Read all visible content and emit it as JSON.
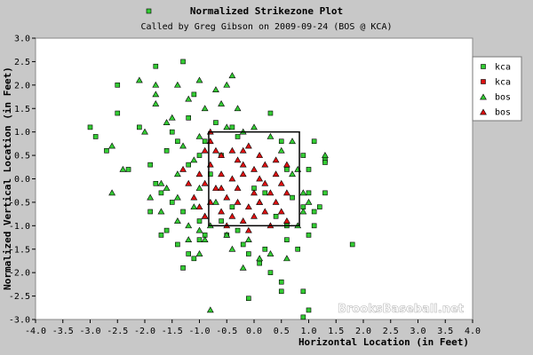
{
  "chart_data": {
    "type": "scatter",
    "title": "Normalized Strikezone Plot",
    "subtitle": "Called by Greg Gibson on 2009-09-24 (BOS @ KCA)",
    "xlabel": "Horizontal Location (in Feet)",
    "ylabel": "Normalized Vertical Location (in Feet)",
    "xlim": [
      -4.0,
      4.0
    ],
    "ylim": [
      -3.0,
      3.0
    ],
    "x_ticks": [
      "-4.0",
      "-3.5",
      "-3.0",
      "-2.5",
      "-2.0",
      "-1.5",
      "-1.0",
      "-0.5",
      "0.0",
      "0.5",
      "1.0",
      "1.5",
      "2.0",
      "2.5",
      "3.0",
      "3.5",
      "4.0"
    ],
    "y_ticks": [
      "3.0",
      "2.5",
      "2.0",
      "1.5",
      "1.0",
      "0.5",
      "0.0",
      "-0.5",
      "-1.0",
      "-1.5",
      "-2.0",
      "-2.5",
      "-3.0"
    ],
    "strike_zone": {
      "x": [
        -0.83,
        0.83
      ],
      "y": [
        -1.0,
        1.0
      ]
    },
    "legend_position": "top-right",
    "watermark": "BrooksBaseball.net",
    "colors": {
      "green": "#33cc33",
      "red": "#dd1111",
      "plot_bg": "#ffffff",
      "page_bg": "#c8c8c8"
    },
    "series": [
      {
        "name": "kca",
        "marker": "square",
        "color": "#33cc33",
        "points": [
          [
            -2.5,
            2.0
          ],
          [
            -2.5,
            1.4
          ],
          [
            -1.8,
            2.4
          ],
          [
            -1.3,
            2.5
          ],
          [
            -1.2,
            1.3
          ],
          [
            -1.5,
            1.0
          ],
          [
            -2.1,
            1.1
          ],
          [
            -3.0,
            1.1
          ],
          [
            -2.9,
            0.9
          ],
          [
            -2.7,
            0.6
          ],
          [
            -2.3,
            0.2
          ],
          [
            -1.9,
            0.3
          ],
          [
            -1.6,
            0.6
          ],
          [
            -1.4,
            0.8
          ],
          [
            -1.2,
            0.3
          ],
          [
            -1.8,
            -0.1
          ],
          [
            -1.7,
            -0.3
          ],
          [
            -1.5,
            -0.5
          ],
          [
            -1.3,
            -0.7
          ],
          [
            -1.0,
            -0.9
          ],
          [
            -1.6,
            -1.1
          ],
          [
            -1.4,
            -1.4
          ],
          [
            -1.2,
            -1.6
          ],
          [
            -1.0,
            -1.3
          ],
          [
            -1.9,
            -0.7
          ],
          [
            -1.7,
            -1.2
          ],
          [
            -1.3,
            -1.9
          ],
          [
            -1.1,
            -1.7
          ],
          [
            -0.9,
            -1.2
          ],
          [
            -0.6,
            -0.9
          ],
          [
            -0.3,
            -1.1
          ],
          [
            -0.2,
            -1.4
          ],
          [
            -0.1,
            -1.6
          ],
          [
            0.1,
            -1.8
          ],
          [
            0.2,
            -1.5
          ],
          [
            0.3,
            -2.0
          ],
          [
            0.5,
            -2.2
          ],
          [
            0.6,
            -1.3
          ],
          [
            0.8,
            -1.5
          ],
          [
            1.0,
            -1.2
          ],
          [
            1.1,
            -1.0
          ],
          [
            1.2,
            -0.6
          ],
          [
            1.3,
            -0.3
          ],
          [
            1.0,
            0.2
          ],
          [
            0.9,
            0.5
          ],
          [
            1.1,
            0.8
          ],
          [
            1.3,
            0.4
          ],
          [
            1.0,
            -0.3
          ],
          [
            0.9,
            -0.6
          ],
          [
            0.7,
            -0.4
          ],
          [
            0.6,
            0.2
          ],
          [
            0.5,
            0.8
          ],
          [
            0.3,
            1.4
          ],
          [
            -0.3,
            0.9
          ],
          [
            -0.4,
            1.1
          ],
          [
            -0.6,
            0.5
          ],
          [
            -0.8,
            0.1
          ],
          [
            -1.0,
            0.5
          ],
          [
            -0.9,
            0.8
          ],
          [
            -0.7,
            1.2
          ],
          [
            -1.1,
            1.8
          ],
          [
            0.4,
            -0.8
          ],
          [
            0.2,
            -0.3
          ],
          [
            0.0,
            -0.2
          ],
          [
            -0.4,
            -0.6
          ],
          [
            -0.5,
            -1.2
          ],
          [
            0.6,
            -1.0
          ],
          [
            1.8,
            -1.4
          ],
          [
            0.9,
            -2.4
          ],
          [
            0.5,
            -2.4
          ],
          [
            1.0,
            -2.8
          ],
          [
            0.9,
            -2.95
          ],
          [
            -0.1,
            -2.55
          ],
          [
            1.3,
            0.35
          ],
          [
            1.1,
            -0.7
          ]
        ]
      },
      {
        "name": "kca",
        "marker": "square",
        "color": "#dd1111",
        "points": []
      },
      {
        "name": "bos",
        "marker": "triangle",
        "color": "#33cc33",
        "points": [
          [
            -2.1,
            2.1
          ],
          [
            -1.8,
            2.0
          ],
          [
            -1.8,
            1.8
          ],
          [
            -1.8,
            1.6
          ],
          [
            -1.4,
            2.0
          ],
          [
            -1.0,
            2.1
          ],
          [
            -0.7,
            1.9
          ],
          [
            -0.5,
            2.0
          ],
          [
            -0.4,
            2.2
          ],
          [
            -1.2,
            1.7
          ],
          [
            -0.9,
            1.5
          ],
          [
            -0.6,
            1.6
          ],
          [
            -0.3,
            1.5
          ],
          [
            -1.5,
            1.3
          ],
          [
            -1.6,
            1.2
          ],
          [
            -2.0,
            1.0
          ],
          [
            -2.6,
            0.7
          ],
          [
            -2.4,
            0.2
          ],
          [
            -2.6,
            -0.3
          ],
          [
            -1.9,
            -0.4
          ],
          [
            -1.7,
            -0.7
          ],
          [
            -1.4,
            -0.9
          ],
          [
            -1.2,
            -1.0
          ],
          [
            -1.0,
            -1.1
          ],
          [
            -0.9,
            -1.3
          ],
          [
            -1.2,
            -1.3
          ],
          [
            -1.0,
            -1.6
          ],
          [
            -1.6,
            -0.2
          ],
          [
            -1.4,
            -0.4
          ],
          [
            -1.1,
            -0.6
          ],
          [
            -0.9,
            -0.8
          ],
          [
            -0.8,
            -1.0
          ],
          [
            -0.5,
            -1.2
          ],
          [
            -0.4,
            -1.5
          ],
          [
            -0.1,
            -1.3
          ],
          [
            0.3,
            -1.6
          ],
          [
            0.6,
            -1.7
          ],
          [
            0.8,
            -1.0
          ],
          [
            0.9,
            -0.7
          ],
          [
            1.0,
            -0.5
          ],
          [
            0.8,
            0.2
          ],
          [
            0.9,
            -0.3
          ],
          [
            0.7,
            0.1
          ],
          [
            0.5,
            0.6
          ],
          [
            0.7,
            0.8
          ],
          [
            0.3,
            0.9
          ],
          [
            0.0,
            1.1
          ],
          [
            -0.2,
            1.0
          ],
          [
            -0.5,
            1.1
          ],
          [
            -1.0,
            0.9
          ],
          [
            -1.3,
            0.7
          ],
          [
            -1.1,
            0.4
          ],
          [
            -1.4,
            0.1
          ],
          [
            -1.7,
            -0.1
          ],
          [
            -0.7,
            -0.5
          ],
          [
            -1.0,
            -0.2
          ],
          [
            0.1,
            -0.5
          ],
          [
            1.3,
            0.5
          ],
          [
            -0.2,
            -1.9
          ],
          [
            -0.8,
            -2.8
          ],
          [
            0.1,
            -1.7
          ]
        ]
      },
      {
        "name": "bos",
        "marker": "triangle",
        "color": "#dd1111",
        "points": [
          [
            -0.8,
            0.8
          ],
          [
            -0.7,
            0.6
          ],
          [
            -0.6,
            0.5
          ],
          [
            -0.4,
            0.6
          ],
          [
            -0.2,
            0.6
          ],
          [
            -0.1,
            0.7
          ],
          [
            0.1,
            0.5
          ],
          [
            0.2,
            0.3
          ],
          [
            0.4,
            0.1
          ],
          [
            0.5,
            -0.1
          ],
          [
            0.6,
            -0.3
          ],
          [
            -0.8,
            0.3
          ],
          [
            -0.6,
            0.1
          ],
          [
            -0.4,
            0.0
          ],
          [
            -0.2,
            0.1
          ],
          [
            0.0,
            0.2
          ],
          [
            0.2,
            -0.1
          ],
          [
            0.3,
            -0.3
          ],
          [
            0.1,
            -0.5
          ],
          [
            -0.1,
            -0.6
          ],
          [
            -0.3,
            -0.5
          ],
          [
            -0.5,
            -0.4
          ],
          [
            -0.7,
            -0.2
          ],
          [
            -0.8,
            -0.5
          ],
          [
            -0.6,
            -0.7
          ],
          [
            -0.4,
            -0.8
          ],
          [
            -0.2,
            -0.9
          ],
          [
            0.0,
            -0.8
          ],
          [
            0.2,
            -0.7
          ],
          [
            0.4,
            -0.5
          ],
          [
            0.5,
            -0.7
          ],
          [
            0.6,
            -0.9
          ],
          [
            0.3,
            -1.0
          ],
          [
            -0.1,
            -1.1
          ],
          [
            -0.5,
            -1.0
          ],
          [
            -0.9,
            -0.8
          ],
          [
            -1.1,
            -0.4
          ],
          [
            -1.2,
            -0.1
          ],
          [
            -1.3,
            0.2
          ],
          [
            -1.0,
            0.1
          ],
          [
            -0.9,
            -0.1
          ],
          [
            -0.3,
            0.4
          ],
          [
            0.1,
            0.0
          ],
          [
            -0.6,
            -0.2
          ],
          [
            -0.3,
            -0.2
          ],
          [
            0.4,
            0.4
          ],
          [
            -0.2,
            0.3
          ],
          [
            0.0,
            -0.3
          ],
          [
            0.6,
            0.3
          ],
          [
            -0.8,
            1.0
          ],
          [
            -1.0,
            -0.6
          ],
          [
            -0.9,
            0.6
          ]
        ]
      }
    ]
  }
}
